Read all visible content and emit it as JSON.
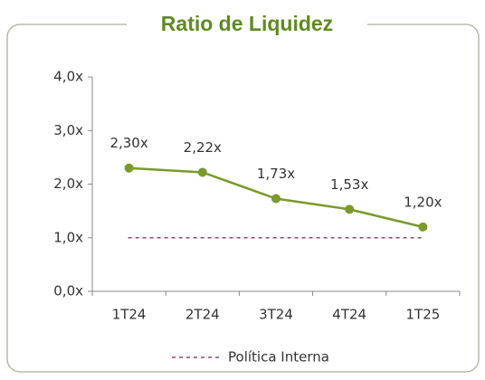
{
  "chart_data": {
    "type": "line",
    "title": "Ratio de Liquidez",
    "categories": [
      "1T24",
      "2T24",
      "3T24",
      "4T24",
      "1T25"
    ],
    "series": [
      {
        "color": "#7a9a2a",
        "values": [
          2.3,
          2.22,
          1.73,
          1.53,
          1.2
        ],
        "value_labels": [
          "2,30x",
          "2,22x",
          "1,73x",
          "1,53x",
          "1,20x"
        ]
      },
      {
        "name": "Política Interna",
        "color": "#8a4a6e",
        "dashed": true,
        "values": [
          1.0,
          1.0,
          1.0,
          1.0,
          1.0
        ]
      }
    ],
    "ylim": [
      0,
      4
    ],
    "yticks": [
      {
        "value": 0,
        "label": "0,0x"
      },
      {
        "value": 1,
        "label": "1,0x"
      },
      {
        "value": 2,
        "label": "2,0x"
      },
      {
        "value": 3,
        "label": "3,0x"
      },
      {
        "value": 4,
        "label": "4,0x"
      }
    ],
    "legend": "bottom"
  }
}
